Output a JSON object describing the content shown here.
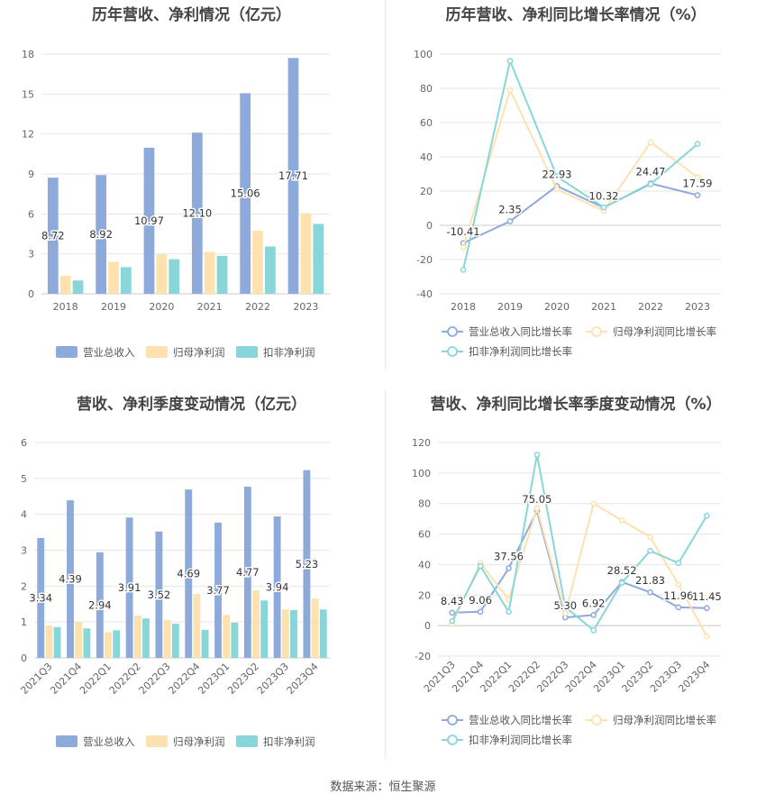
{
  "source_text": "数据来源：恒生聚源",
  "chart_data": [
    {
      "id": "annual_rev_profit",
      "type": "bar",
      "title": "历年营收、净利情况（亿元）",
      "categories": [
        "2018",
        "2019",
        "2020",
        "2021",
        "2022",
        "2023"
      ],
      "yticks": [
        0,
        3,
        6,
        9,
        12,
        15,
        18
      ],
      "ylim": [
        0,
        18
      ],
      "labeled_series": 0,
      "series": [
        {
          "name": "营业总收入",
          "color": "#8eaadb",
          "values": [
            8.72,
            8.92,
            10.97,
            12.1,
            15.06,
            17.71
          ],
          "labels": [
            "8.72",
            "8.92",
            "10.97",
            "12.10",
            "15.06",
            "17.71"
          ]
        },
        {
          "name": "归母净利润",
          "color": "#fde2b0",
          "values": [
            1.35,
            2.4,
            2.95,
            3.15,
            4.75,
            6.05
          ]
        },
        {
          "name": "扣非净利润",
          "color": "#88d6d9",
          "values": [
            1.0,
            2.0,
            2.6,
            2.85,
            3.55,
            5.25
          ]
        }
      ]
    },
    {
      "id": "annual_growth",
      "type": "line",
      "title": "历年营收、净利同比增长率情况（%）",
      "categories": [
        "2018",
        "2019",
        "2020",
        "2021",
        "2022",
        "2023"
      ],
      "yticks": [
        -40,
        -20,
        0,
        20,
        40,
        60,
        80,
        100
      ],
      "ylim": [
        -40,
        100
      ],
      "labeled_series": 0,
      "series": [
        {
          "name": "营业总收入同比增长率",
          "color": "#8eaadb",
          "values": [
            -10.41,
            2.35,
            22.93,
            10.32,
            24.47,
            17.59
          ],
          "labels": [
            "-10.41",
            "2.35",
            "22.93",
            "10.32",
            "24.47",
            "17.59"
          ]
        },
        {
          "name": "归母净利润同比增长率",
          "color": "#fde2b0",
          "values": [
            -13,
            79,
            21,
            8.5,
            48.5,
            28
          ]
        },
        {
          "name": "扣非净利润同比增长率",
          "color": "#88d6d9",
          "values": [
            -26,
            96,
            28.5,
            10.5,
            24,
            47.5
          ]
        }
      ]
    },
    {
      "id": "quarterly_rev_profit",
      "type": "bar",
      "title": "营收、净利季度变动情况（亿元）",
      "categories": [
        "2021Q3",
        "2021Q4",
        "2022Q1",
        "2022Q2",
        "2022Q3",
        "2022Q4",
        "2023Q1",
        "2023Q2",
        "2023Q3",
        "2023Q4"
      ],
      "yticks": [
        0,
        1,
        2,
        3,
        4,
        5,
        6
      ],
      "ylim": [
        0,
        6
      ],
      "labeled_series": 0,
      "series": [
        {
          "name": "营业总收入",
          "color": "#8eaadb",
          "values": [
            3.34,
            4.39,
            2.94,
            3.91,
            3.52,
            4.69,
            3.77,
            4.77,
            3.94,
            5.23
          ],
          "labels": [
            "3.34",
            "4.39",
            "2.94",
            "3.91",
            "3.52",
            "4.69",
            "3.77",
            "4.77",
            "3.94",
            "5.23"
          ]
        },
        {
          "name": "归母净利润",
          "color": "#fde2b0",
          "values": [
            0.9,
            1.0,
            0.72,
            1.18,
            1.06,
            1.78,
            1.2,
            1.88,
            1.35,
            1.65
          ]
        },
        {
          "name": "扣非净利润",
          "color": "#88d6d9",
          "values": [
            0.86,
            0.82,
            0.77,
            1.1,
            0.95,
            0.78,
            0.98,
            1.6,
            1.33,
            1.35
          ]
        }
      ]
    },
    {
      "id": "quarterly_growth",
      "type": "line",
      "title": "营收、净利同比增长率季度变动情况（%）",
      "categories": [
        "2021Q3",
        "2021Q4",
        "2022Q1",
        "2022Q2",
        "2022Q3",
        "2022Q4",
        "2023Q1",
        "2023Q2",
        "2023Q3",
        "2023Q4"
      ],
      "yticks": [
        -20,
        0,
        20,
        40,
        60,
        80,
        100,
        120
      ],
      "ylim": [
        -20,
        120
      ],
      "labeled_series": 0,
      "series": [
        {
          "name": "营业总收入同比增长率",
          "color": "#8eaadb",
          "values": [
            8.43,
            9.06,
            37.56,
            75.05,
            5.3,
            6.92,
            28.52,
            21.83,
            11.96,
            11.45
          ],
          "labels": [
            "8.43",
            "9.06",
            "37.56",
            "75.05",
            "5.30",
            "6.92",
            "28.52",
            "21.83",
            "11.96",
            "11.45"
          ]
        },
        {
          "name": "归母净利润同比增长率",
          "color": "#fde2b0",
          "values": [
            1,
            41,
            17,
            77,
            8,
            80,
            69,
            58,
            27,
            -7
          ]
        },
        {
          "name": "扣非净利润同比增长率",
          "color": "#88d6d9",
          "values": [
            3,
            39,
            9,
            112,
            12,
            -3,
            28,
            49,
            41,
            72
          ]
        }
      ]
    }
  ]
}
